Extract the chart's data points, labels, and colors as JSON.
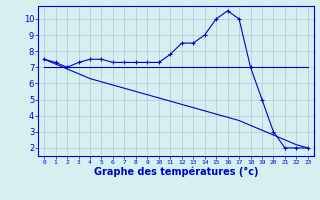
{
  "hours": [
    0,
    1,
    2,
    3,
    4,
    5,
    6,
    7,
    8,
    9,
    10,
    11,
    12,
    13,
    14,
    15,
    16,
    17,
    18,
    19,
    20,
    21,
    22,
    23
  ],
  "temp_curve": [
    7.5,
    7.3,
    7.0,
    7.3,
    7.5,
    7.5,
    7.3,
    7.3,
    7.3,
    7.3,
    7.3,
    7.8,
    8.5,
    8.5,
    9.0,
    10.0,
    10.5,
    10.0,
    7.0,
    5.0,
    3.0,
    2.0,
    2.0,
    2.0
  ],
  "line_flat": [
    7.0,
    7.0,
    7.0,
    7.0,
    7.0,
    7.0,
    7.0,
    7.0,
    7.0,
    7.0,
    7.0,
    7.0,
    7.0,
    7.0,
    7.0,
    7.0,
    7.0,
    7.0,
    7.0,
    7.0,
    7.0,
    7.0,
    7.0,
    7.0
  ],
  "line_declining": [
    7.5,
    7.2,
    6.9,
    6.6,
    6.3,
    6.1,
    5.9,
    5.7,
    5.5,
    5.3,
    5.1,
    4.9,
    4.7,
    4.5,
    4.3,
    4.1,
    3.9,
    3.7,
    3.4,
    3.1,
    2.8,
    2.5,
    2.2,
    2.0
  ],
  "line_color": "#0000cc",
  "bg_color": "#d4f0f0",
  "grid_color": "#b0c8d8",
  "ylabel_ticks": [
    2,
    3,
    4,
    5,
    6,
    7,
    8,
    9,
    10
  ],
  "ylim": [
    1.5,
    10.8
  ],
  "xlim": [
    -0.5,
    23.5
  ],
  "xlabel": "Graphe des températures (°c)",
  "title": ""
}
